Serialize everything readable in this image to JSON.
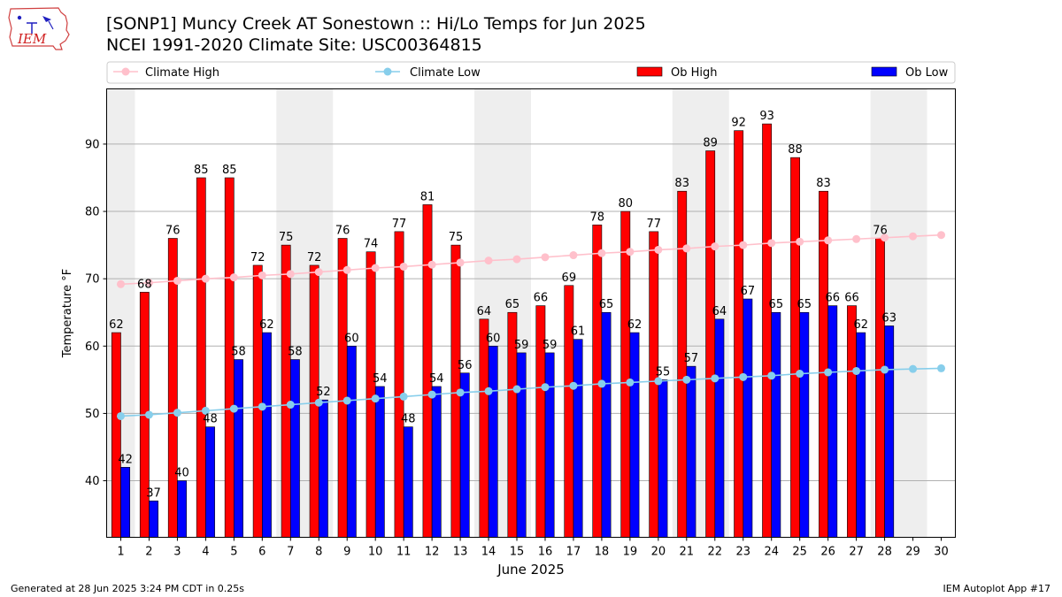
{
  "header": {
    "title_line1": "[SONP1] Muncy Creek  AT Sonestown :: Hi/Lo Temps for Jun 2025",
    "title_line2": "NCEI 1991-2020 Climate Site: USC00364815"
  },
  "logo": {
    "text": "IEM"
  },
  "footer": {
    "generated": "Generated at 28 Jun 2025 3:24 PM CDT in 0.25s",
    "app": "IEM Autoplot App #17"
  },
  "colors": {
    "ob_high": "#ff0000",
    "ob_low": "#0000ff",
    "climate_high": "#ffc0cb",
    "climate_low": "#87ceeb",
    "weekend_band": "#eeeeee",
    "grid": "#b0b0b0"
  },
  "chart_data": {
    "type": "bar",
    "xlabel": "June 2025",
    "ylabel": "Temperature °F",
    "xlim": [
      0.5,
      30.5
    ],
    "ylim": [
      31.6,
      98.2
    ],
    "yticks": [
      40,
      50,
      60,
      70,
      80,
      90
    ],
    "grid": true,
    "legend_position": "top",
    "weekend_bands": [
      [
        1,
        1
      ],
      [
        7,
        8
      ],
      [
        14,
        15
      ],
      [
        21,
        22
      ],
      [
        28,
        29
      ]
    ],
    "categories": [
      "1",
      "2",
      "3",
      "4",
      "5",
      "6",
      "7",
      "8",
      "9",
      "10",
      "11",
      "12",
      "13",
      "14",
      "15",
      "16",
      "17",
      "18",
      "19",
      "20",
      "21",
      "22",
      "23",
      "24",
      "25",
      "26",
      "27",
      "28",
      "29",
      "30"
    ],
    "series": [
      {
        "name": "Climate High",
        "kind": "line",
        "values": [
          69.2,
          69.4,
          69.7,
          70.0,
          70.2,
          70.5,
          70.7,
          71.0,
          71.3,
          71.6,
          71.8,
          72.1,
          72.4,
          72.7,
          72.9,
          73.2,
          73.5,
          73.8,
          74.0,
          74.3,
          74.5,
          74.8,
          75.0,
          75.3,
          75.5,
          75.7,
          75.9,
          76.1,
          76.3,
          76.5
        ]
      },
      {
        "name": "Climate Low",
        "kind": "line",
        "values": [
          49.6,
          49.8,
          50.1,
          50.4,
          50.7,
          51.0,
          51.3,
          51.6,
          51.9,
          52.2,
          52.5,
          52.8,
          53.1,
          53.3,
          53.6,
          53.9,
          54.1,
          54.4,
          54.6,
          54.8,
          55.0,
          55.2,
          55.4,
          55.6,
          55.9,
          56.1,
          56.3,
          56.5,
          56.6,
          56.7
        ]
      },
      {
        "name": "Ob High",
        "kind": "bar",
        "values": [
          62,
          68,
          76,
          85,
          85,
          72,
          75,
          72,
          76,
          74,
          77,
          81,
          75,
          64,
          65,
          66,
          69,
          78,
          80,
          77,
          83,
          89,
          92,
          93,
          88,
          83,
          66,
          76,
          null,
          null
        ]
      },
      {
        "name": "Ob Low",
        "kind": "bar",
        "values": [
          42,
          37,
          40,
          48,
          58,
          62,
          58,
          52,
          60,
          54,
          48,
          54,
          56,
          60,
          59,
          59,
          61,
          65,
          62,
          55,
          57,
          64,
          67,
          65,
          65,
          66,
          62,
          63,
          null,
          null
        ]
      }
    ]
  }
}
